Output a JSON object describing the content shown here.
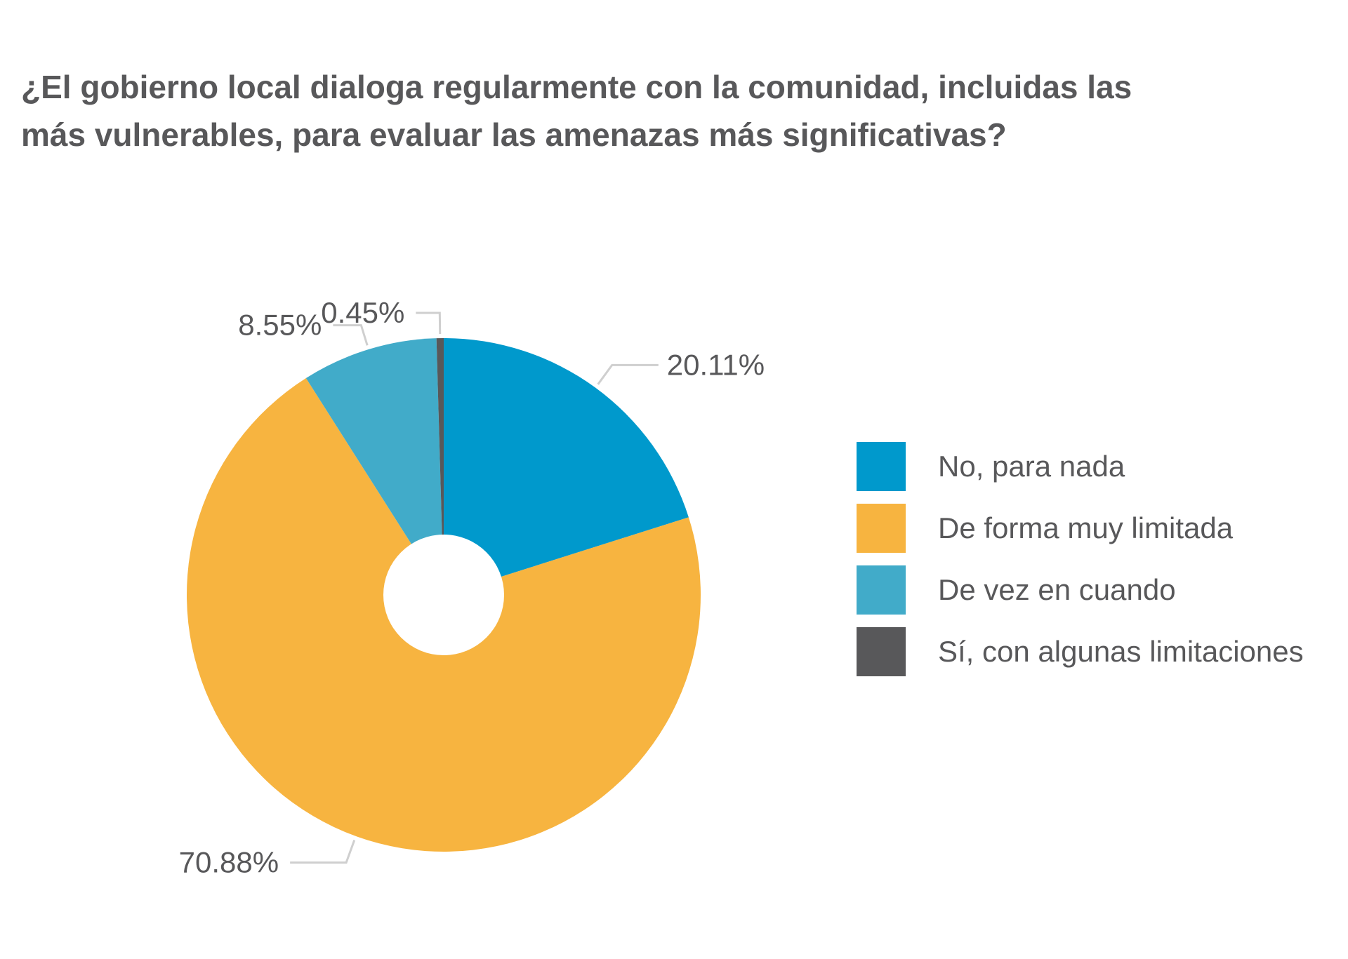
{
  "chart_data": {
    "type": "pie",
    "title_lines": [
      "¿El gobierno local dialoga regularmente con la comunidad, incluidas las",
      "más vulnerables, para evaluar las amenazas más significativas?"
    ],
    "series": [
      {
        "name": "No, para nada",
        "value": 20.11,
        "label": "20.11%",
        "color": "#0099cc"
      },
      {
        "name": "De forma muy limitada",
        "value": 70.88,
        "label": "70.88%",
        "color": "#f7b440"
      },
      {
        "name": "De vez en cuando",
        "value": 8.55,
        "label": "8.55%",
        "color": "#41abc9"
      },
      {
        "name": "Sí, con algunas limitaciones",
        "value": 0.45,
        "label": "0.45%",
        "color": "#58585a"
      }
    ],
    "legend_position": "right",
    "donut": true
  }
}
